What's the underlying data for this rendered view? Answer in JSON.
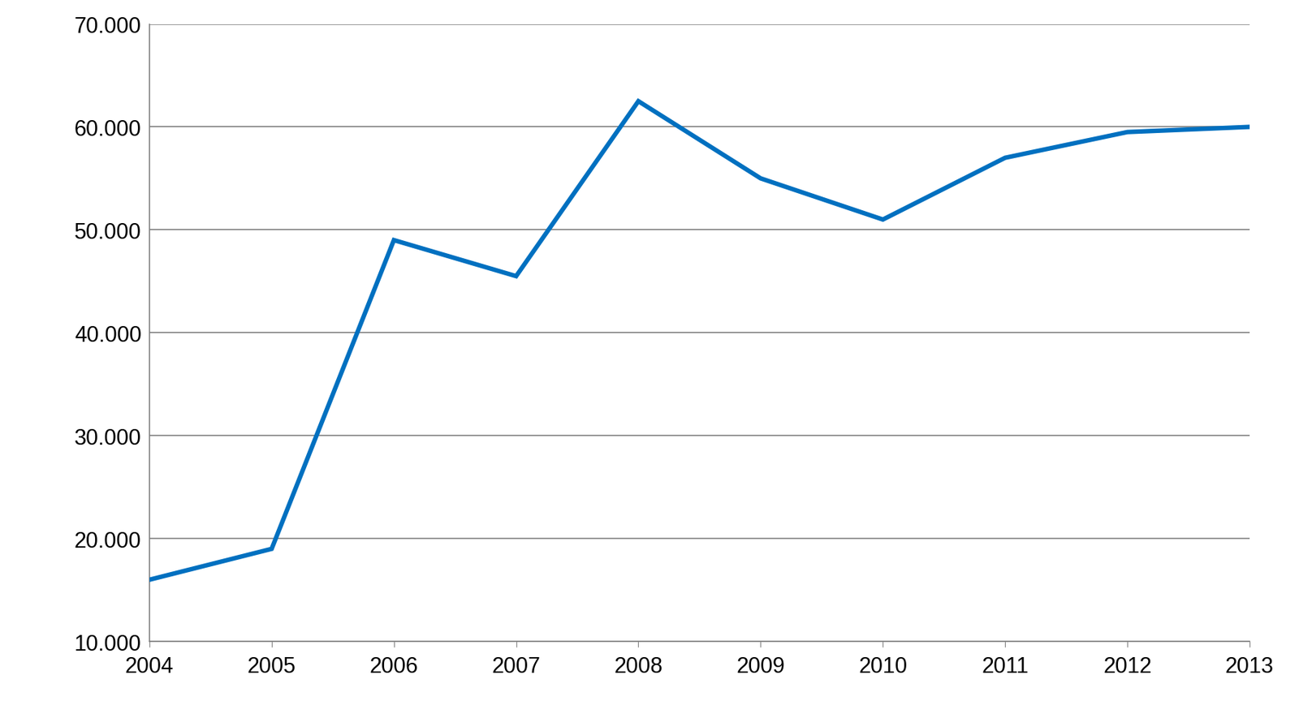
{
  "chart_data": {
    "type": "line",
    "x": [
      2004,
      2005,
      2006,
      2007,
      2008,
      2009,
      2010,
      2011,
      2012,
      2013
    ],
    "values": [
      16000,
      19000,
      49000,
      45500,
      62500,
      55000,
      51000,
      57000,
      59500,
      60000
    ],
    "color": "#0070c0",
    "xlim": [
      2004,
      2013
    ],
    "xticks": [
      2004,
      2005,
      2006,
      2007,
      2008,
      2009,
      2010,
      2011,
      2012,
      2013
    ],
    "ylim": [
      10000,
      70000
    ],
    "yticks": [
      {
        "value": 10000,
        "label": "10.000"
      },
      {
        "value": 20000,
        "label": "20.000"
      },
      {
        "value": 30000,
        "label": "30.000"
      },
      {
        "value": 40000,
        "label": "40.000"
      },
      {
        "value": 50000,
        "label": "50.000"
      },
      {
        "value": 60000,
        "label": "60.000"
      },
      {
        "value": 70000,
        "label": "70.000"
      }
    ],
    "grid": true
  }
}
